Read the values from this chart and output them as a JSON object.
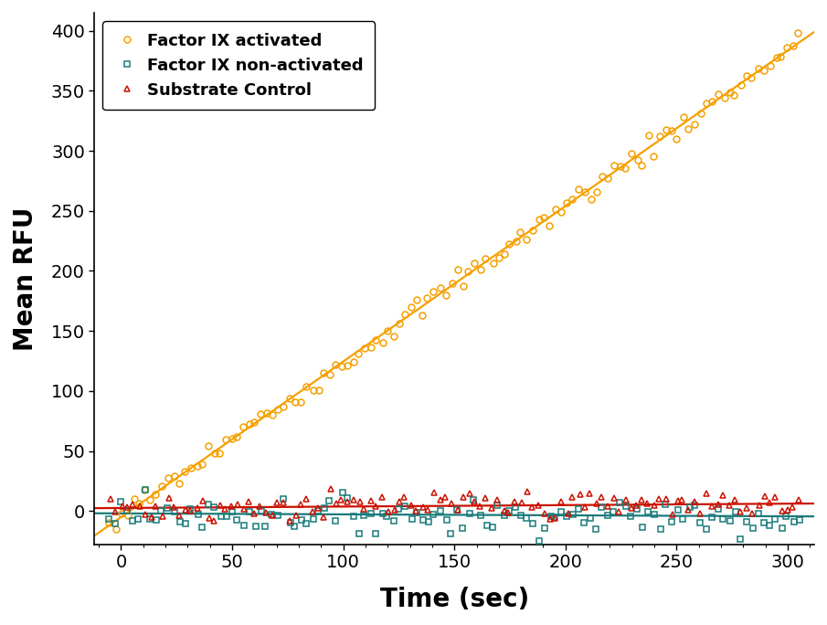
{
  "xlabel": "Time (sec)",
  "ylabel": "Mean RFU",
  "xlim": [
    -12,
    312
  ],
  "ylim": [
    -28,
    415
  ],
  "xticks": [
    0,
    50,
    100,
    150,
    200,
    250,
    300
  ],
  "yticks": [
    0,
    50,
    100,
    150,
    200,
    250,
    300,
    350,
    400
  ],
  "series": [
    {
      "label": "Factor IX activated",
      "color": "#F5A000",
      "marker": "o",
      "marker_facecolor": "none",
      "marker_edgecolor": "#F5A000",
      "line_slope": 1.295,
      "line_intercept": -5.0,
      "noise_scale": 5.0,
      "n_points": 120,
      "x_start": -5,
      "x_end": 305
    },
    {
      "label": "Factor IX non-activated",
      "color": "#1A7A7A",
      "marker": "s",
      "marker_facecolor": "none",
      "marker_edgecolor": "#1A7A7A",
      "line_slope": -0.008,
      "line_intercept": -2.0,
      "noise_scale": 7.0,
      "n_points": 120,
      "x_start": -5,
      "x_end": 305
    },
    {
      "label": "Substrate Control",
      "color": "#CC1100",
      "marker": "^",
      "marker_facecolor": "none",
      "marker_edgecolor": "#CC1100",
      "line_slope": 0.012,
      "line_intercept": 2.5,
      "noise_scale": 6.0,
      "n_points": 120,
      "x_start": -5,
      "x_end": 305
    }
  ],
  "legend_loc": "upper left",
  "legend_fontsize": 13,
  "axis_label_fontsize": 20,
  "tick_fontsize": 14,
  "marker_size": 5,
  "marker_edgewidth": 1.1,
  "linewidth": 1.6
}
